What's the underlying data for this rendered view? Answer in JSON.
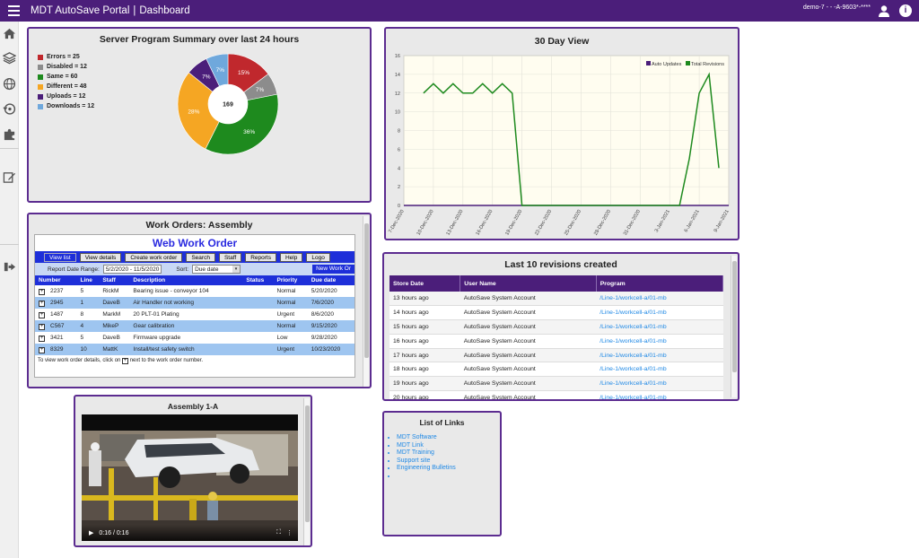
{
  "header": {
    "app_name": "MDT AutoSave Portal",
    "separator": "|",
    "page": "Dashboard",
    "user_text": "demo-7 - - -A-9603*-****",
    "user_icon": "user-icon",
    "info_icon": "info-icon",
    "menu_icon": "hamburger-icon"
  },
  "sidebar": {
    "icons": [
      "home-icon",
      "layers-icon",
      "globe-icon",
      "history-icon",
      "puzzle-icon",
      "edit-icon",
      "logout-icon"
    ]
  },
  "summary": {
    "title": "Server Program Summary over last 24 hours",
    "legend": [
      {
        "label": "Errors = 25",
        "color": "#c0282d"
      },
      {
        "label": "Disabled = 12",
        "color": "#8c8c8c"
      },
      {
        "label": "Same = 60",
        "color": "#1e8a1e"
      },
      {
        "label": "Different = 48",
        "color": "#f5a623"
      },
      {
        "label": "Uploads = 12",
        "color": "#4b1e7a"
      },
      {
        "label": "Downloads = 12",
        "color": "#6fa8dc"
      }
    ],
    "center_label": "169",
    "slice_labels": [
      "15%",
      "7%",
      "36%",
      "28%",
      "7%",
      "7%"
    ]
  },
  "chart_data": {
    "type": "line",
    "title": "30 Day View",
    "x": [
      "7-Dec-2020",
      "8-Dec-2020",
      "9-Dec-2020",
      "10-Dec-2020",
      "11-Dec-2020",
      "12-Dec-2020",
      "13-Dec-2020",
      "14-Dec-2020",
      "15-Dec-2020",
      "16-Dec-2020",
      "17-Dec-2020",
      "18-Dec-2020",
      "19-Dec-2020",
      "20-Dec-2020",
      "21-Dec-2020",
      "22-Dec-2020",
      "23-Dec-2020",
      "24-Dec-2020",
      "25-Dec-2020",
      "26-Dec-2020",
      "27-Dec-2020",
      "28-Dec-2020",
      "29-Dec-2020",
      "30-Dec-2020",
      "31-Dec-2020",
      "1-Jan-2021",
      "2-Jan-2021",
      "3-Jan-2021",
      "4-Jan-2021",
      "5-Jan-2021",
      "6-Jan-2021",
      "7-Jan-2021",
      "8-Jan-2021",
      "9-Jan-2021"
    ],
    "xticks": [
      "7-Dec-2020",
      "10-Dec-2020",
      "13-Dec-2020",
      "16-Dec-2020",
      "19-Dec-2020",
      "22-Dec-2020",
      "25-Dec-2020",
      "28-Dec-2020",
      "31-Dec-2020",
      "3-Jan-2021",
      "6-Jan-2021",
      "9-Jan-2021"
    ],
    "yticks": [
      "0",
      "2",
      "4",
      "6",
      "8",
      "10",
      "12",
      "14",
      "16"
    ],
    "series": [
      {
        "name": "Auto Updates",
        "color": "#4b1e7a",
        "values": [
          0,
          0,
          0,
          0,
          0,
          0,
          0,
          0,
          0,
          0,
          0,
          0,
          0,
          0,
          0,
          0,
          0,
          0,
          0,
          0,
          0,
          0,
          0,
          0,
          0,
          0,
          0,
          0,
          0,
          0,
          0,
          0,
          0,
          0
        ]
      },
      {
        "name": "Total Revisions",
        "color": "#1e8a1e",
        "values": [
          null,
          null,
          12,
          13,
          12,
          13,
          12,
          12,
          13,
          12,
          13,
          12,
          0,
          0,
          0,
          0,
          0,
          0,
          0,
          0,
          0,
          0,
          0,
          0,
          0,
          0,
          0,
          0,
          0,
          5,
          12,
          14,
          4,
          null
        ]
      }
    ],
    "ylim": [
      0,
      16
    ],
    "legend": "top-right",
    "grid": true
  },
  "work_orders": {
    "title": "Work Orders: Assembly",
    "heading": "Web Work Order",
    "toolbar": [
      "View list",
      "View details",
      "Create work order",
      "Search",
      "Staff",
      "Reports",
      "Help",
      "Logo"
    ],
    "range_label": "Report Date Range:",
    "range_value": "5/2/2020 - 11/5/2020",
    "sort_label": "Sort:",
    "sort_value": "Due date",
    "new_button": "New Work Or",
    "columns": [
      "Number",
      "Line",
      "Staff",
      "Description",
      "Status",
      "Priority",
      "Due date"
    ],
    "rows": [
      [
        "2237",
        "5",
        "RickM",
        "Bearing issue - conveyor 104",
        "",
        "Normal",
        "5/20/2020"
      ],
      [
        "2945",
        "1",
        "DaveB",
        "Air Handler not working",
        "",
        "Normal",
        "7/6/2020"
      ],
      [
        "1487",
        "8",
        "MarkM",
        "20 PLT-01 Plating",
        "",
        "Urgent",
        "8/6/2020"
      ],
      [
        "C567",
        "4",
        "MikeP",
        "Gear calibration",
        "",
        "Normal",
        "9/15/2020"
      ],
      [
        "3421",
        "5",
        "DaveB",
        "Firmware upgrade",
        "",
        "Low",
        "9/28/2020"
      ],
      [
        "8329",
        "10",
        "MattK",
        "Install/test safety switch",
        "",
        "Urgent",
        "10/23/2020"
      ]
    ],
    "note_before": "To view work order details, click on",
    "note_after": "next to the work order number."
  },
  "revisions": {
    "title": "Last 10 revisions created",
    "columns": [
      "Store Date",
      "User Name",
      "Program"
    ],
    "rows": [
      [
        "13 hours ago",
        "AutoSave System Account",
        "/Line-1/workcell-a/01-mb"
      ],
      [
        "14 hours ago",
        "AutoSave System Account",
        "/Line-1/workcell-a/01-mb"
      ],
      [
        "15 hours ago",
        "AutoSave System Account",
        "/Line-1/workcell-a/01-mb"
      ],
      [
        "16 hours ago",
        "AutoSave System Account",
        "/Line-1/workcell-a/01-mb"
      ],
      [
        "17 hours ago",
        "AutoSave System Account",
        "/Line-1/workcell-a/01-mb"
      ],
      [
        "18 hours ago",
        "AutoSave System Account",
        "/Line-1/workcell-a/01-mb"
      ],
      [
        "19 hours ago",
        "AutoSave System Account",
        "/Line-1/workcell-a/01-mb"
      ],
      [
        "20 hours ago",
        "AutoSave System Account",
        "/Line-1/workcell-a/01-mb"
      ]
    ]
  },
  "video": {
    "title": "Assembly 1-A",
    "time": "0:16 / 0:16"
  },
  "links": {
    "title": "List of Links",
    "items": [
      "MDT Software",
      "MDT Link",
      "MDT Training",
      "Support site",
      "Engineering Bulletins",
      ""
    ]
  }
}
